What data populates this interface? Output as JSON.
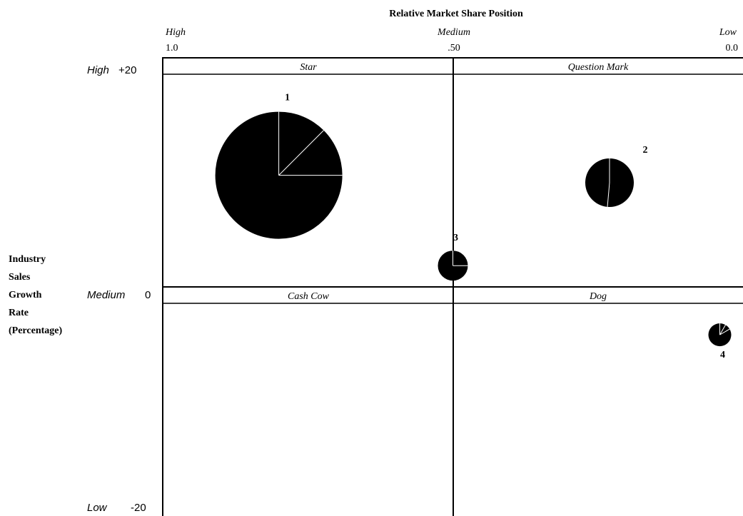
{
  "title": "Relative Market Share Position",
  "x_axis": {
    "levels": [
      "High",
      "Medium",
      "Low"
    ],
    "ticks": [
      "1.0",
      ".50",
      "0.0"
    ]
  },
  "y_axis": {
    "label_lines": [
      "Industry",
      "Sales",
      "Growth",
      "Rate",
      "(Percentage)"
    ],
    "levels": [
      "High",
      "Medium",
      "Low"
    ],
    "ticks": [
      "+20",
      "0",
      "-20"
    ]
  },
  "quadrants": {
    "star": "Star",
    "question_mark": "Question Mark",
    "cash_cow": "Cash Cow",
    "dog": "Dog"
  },
  "divisions": [
    {
      "label": "1",
      "relative_market_share": 0.8,
      "growth_rate": 10.5,
      "size": 89,
      "slice_degrees": [
        0,
        45,
        90
      ]
    },
    {
      "label": "2",
      "relative_market_share": 0.23,
      "growth_rate": 9.8,
      "size": 34,
      "slice_degrees": [
        0,
        185
      ]
    },
    {
      "label": "3",
      "relative_market_share": 0.5,
      "growth_rate": 2.0,
      "size": 21,
      "slice_degrees": [
        0,
        90
      ]
    },
    {
      "label": "4",
      "relative_market_share": 0.04,
      "growth_rate": -4.5,
      "size": 16,
      "slice_degrees": [
        0,
        30,
        60
      ]
    }
  ],
  "colors": {
    "ink": "#000000",
    "background": "#ffffff",
    "slice_line": "#ffffff"
  }
}
